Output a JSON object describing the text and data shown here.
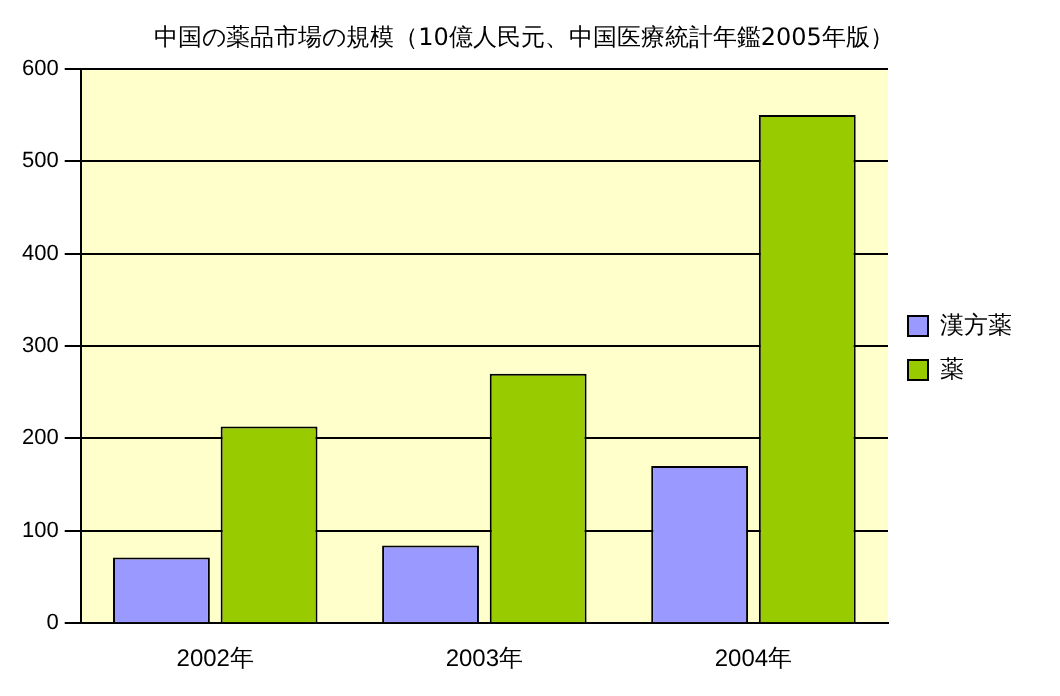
{
  "chart_data": {
    "type": "bar",
    "title": "中国の薬品市場の規模（10億人民元、中国医療統計年鑑2005年版）",
    "categories": [
      "2002年",
      "2003年",
      "2004年"
    ],
    "series": [
      {
        "name": "漢方薬",
        "color": "#9999ff",
        "values": [
          71,
          84,
          170
        ]
      },
      {
        "name": "薬",
        "color": "#99cc00",
        "values": [
          213,
          270,
          550
        ]
      }
    ],
    "ylim": [
      0,
      600
    ],
    "yticks": [
      0,
      100,
      200,
      300,
      400,
      500,
      600
    ],
    "grid": "y",
    "legend": "right"
  }
}
